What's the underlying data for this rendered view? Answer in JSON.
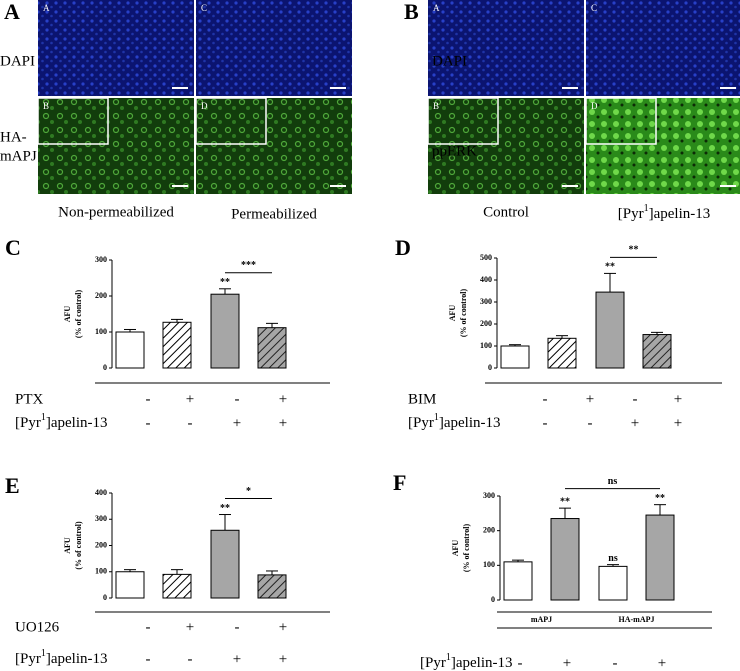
{
  "figure": {
    "panel_A": {
      "label": "A",
      "image_letters": [
        "A",
        "C",
        "B",
        "D"
      ],
      "row_labels": [
        "DAPI",
        [
          "HA-",
          "mAPJ"
        ]
      ],
      "column_labels": [
        "Non-permeabilized",
        "Permeabilized"
      ]
    },
    "panel_B": {
      "label": "B",
      "image_letters": [
        "A",
        "C",
        "B",
        "D"
      ],
      "row_labels": [
        "DAPI",
        "ppERK"
      ],
      "column_labels": [
        "Control",
        [
          "[Pyr",
          "1",
          "]apelin-13"
        ]
      ]
    }
  },
  "chart_data": [
    {
      "type": "bar",
      "title": "C",
      "ylabel": [
        "AFU",
        "(% of control)"
      ],
      "ylim": [
        0,
        300
      ],
      "yticks": [
        0,
        100,
        200,
        300
      ],
      "values": [
        100,
        127,
        205,
        112
      ],
      "errors": [
        7,
        8,
        15,
        12
      ],
      "fills": [
        "white",
        "hatch",
        "#a6a6a6",
        "hatch-gray"
      ],
      "bar_labels": [
        null,
        null,
        "**",
        null
      ],
      "bracket": {
        "text": "***",
        "bars": [
          2,
          3
        ]
      },
      "rows": [
        {
          "label": "PTX",
          "signs": [
            "-",
            "+",
            "-",
            "+"
          ]
        },
        {
          "label": [
            "[Pyr",
            "1",
            "]apelin-13"
          ],
          "signs": [
            "-",
            "-",
            "+",
            "+"
          ]
        }
      ]
    },
    {
      "type": "bar",
      "title": "D",
      "ylabel": [
        "AFU",
        "(% of control)"
      ],
      "ylim": [
        0,
        500
      ],
      "yticks": [
        0,
        100,
        200,
        300,
        400,
        500
      ],
      "values": [
        100,
        135,
        345,
        152
      ],
      "errors": [
        6,
        12,
        85,
        10
      ],
      "fills": [
        "white",
        "hatch",
        "#a6a6a6",
        "hatch-gray"
      ],
      "bar_labels": [
        null,
        null,
        "**",
        null
      ],
      "bracket": {
        "text": "**",
        "bars": [
          2,
          3
        ]
      },
      "rows": [
        {
          "label": "BIM",
          "signs": [
            "-",
            "+",
            "-",
            "+"
          ]
        },
        {
          "label": [
            "[Pyr",
            "1",
            "]apelin-13"
          ],
          "signs": [
            "-",
            "-",
            "+",
            "+"
          ]
        }
      ]
    },
    {
      "type": "bar",
      "title": "E",
      "ylabel": [
        "AFU",
        "(% of control)"
      ],
      "ylim": [
        0,
        400
      ],
      "yticks": [
        0,
        100,
        200,
        300,
        400
      ],
      "values": [
        100,
        90,
        258,
        88
      ],
      "errors": [
        8,
        18,
        60,
        15
      ],
      "fills": [
        "white",
        "hatch",
        "#a6a6a6",
        "hatch-gray"
      ],
      "bar_labels": [
        null,
        null,
        "**",
        null
      ],
      "bracket": {
        "text": "*",
        "bars": [
          2,
          3
        ]
      },
      "rows": [
        {
          "label": "UO126",
          "signs": [
            "-",
            "+",
            "-",
            "+"
          ]
        },
        {
          "label": [
            "[Pyr",
            "1",
            "]apelin-13"
          ],
          "signs": [
            "-",
            "-",
            "+",
            "+"
          ]
        }
      ]
    },
    {
      "type": "bar",
      "title": "F",
      "ylabel": [
        "AFU",
        "(% of control)"
      ],
      "ylim": [
        0,
        300
      ],
      "yticks": [
        0,
        100,
        200,
        300
      ],
      "values": [
        110,
        235,
        97,
        245
      ],
      "errors": [
        5,
        30,
        5,
        30
      ],
      "fills": [
        "white",
        "#a6a6a6",
        "white",
        "#a6a6a6"
      ],
      "bar_labels": [
        null,
        "**",
        "ns",
        "**"
      ],
      "bracket": {
        "text": "ns",
        "bars": [
          1,
          3
        ]
      },
      "groups": [
        "mAPJ",
        "HA-mAPJ"
      ],
      "rows": [
        {
          "label": [
            "[Pyr",
            "1",
            "]apelin-13"
          ],
          "signs": [
            "-",
            "+",
            "-",
            "+"
          ]
        }
      ]
    }
  ]
}
